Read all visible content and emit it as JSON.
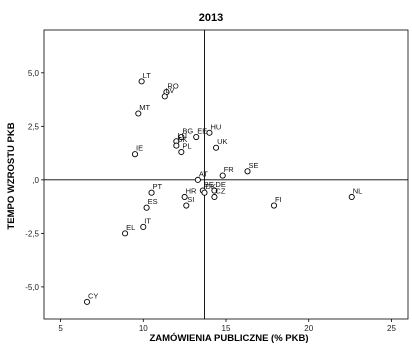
{
  "chart_data": {
    "type": "scatter",
    "title": "2013",
    "xlabel": "ZAMÓWIENIA PUBLICZNE (% PKB)",
    "ylabel": "TEMPO WZROSTU PKB",
    "xlim": [
      4,
      26
    ],
    "ylim": [
      -6.5,
      7
    ],
    "x_ticks": [
      5,
      10,
      15,
      20,
      25
    ],
    "x_tick_labels": [
      "5",
      "10",
      "15",
      "20",
      "25"
    ],
    "y_ticks": [
      5,
      2.5,
      0,
      -2.5,
      -5
    ],
    "y_tick_labels": [
      "5,0",
      "2,5",
      ",0",
      "-2,5",
      "-5,0"
    ],
    "reference_lines": {
      "x": 13.7,
      "y": 0
    },
    "grid": false,
    "points": [
      {
        "label": "LT",
        "x": 9.9,
        "y": 4.6
      },
      {
        "label": "RO",
        "x": 11.4,
        "y": 4.1
      },
      {
        "label": "LV",
        "x": 11.3,
        "y": 3.9
      },
      {
        "label": "MT",
        "x": 9.7,
        "y": 3.1
      },
      {
        "label": "HU",
        "x": 14.0,
        "y": 2.2
      },
      {
        "label": "EE",
        "x": 13.2,
        "y": 2.0
      },
      {
        "label": "BG",
        "x": 12.3,
        "y": 2.0
      },
      {
        "label": "LU",
        "x": 12.0,
        "y": 1.8
      },
      {
        "label": "SK",
        "x": 12.0,
        "y": 1.6
      },
      {
        "label": "UK",
        "x": 14.4,
        "y": 1.5
      },
      {
        "label": "IE",
        "x": 9.5,
        "y": 1.2
      },
      {
        "label": "PL",
        "x": 12.3,
        "y": 1.3
      },
      {
        "label": "SE",
        "x": 16.3,
        "y": 0.4
      },
      {
        "label": "FR",
        "x": 14.8,
        "y": 0.2
      },
      {
        "label": "AT",
        "x": 13.3,
        "y": 0.0
      },
      {
        "label": "BE",
        "x": 13.6,
        "y": -0.5
      },
      {
        "label": "DE",
        "x": 14.3,
        "y": -0.5
      },
      {
        "label": "PT",
        "x": 10.5,
        "y": -0.6
      },
      {
        "label": "HR",
        "x": 12.5,
        "y": -0.8
      },
      {
        "label": "SI",
        "x": 12.6,
        "y": -1.2
      },
      {
        "label": "DK",
        "x": 13.7,
        "y": -0.6
      },
      {
        "label": "CZ",
        "x": 14.3,
        "y": -0.8
      },
      {
        "label": "ES",
        "x": 10.2,
        "y": -1.3
      },
      {
        "label": "IT",
        "x": 10.0,
        "y": -2.2
      },
      {
        "label": "EL",
        "x": 8.9,
        "y": -2.5
      },
      {
        "label": "FI",
        "x": 17.9,
        "y": -1.2
      },
      {
        "label": "NL",
        "x": 22.6,
        "y": -0.8
      },
      {
        "label": "CY",
        "x": 6.6,
        "y": -5.7
      }
    ]
  }
}
